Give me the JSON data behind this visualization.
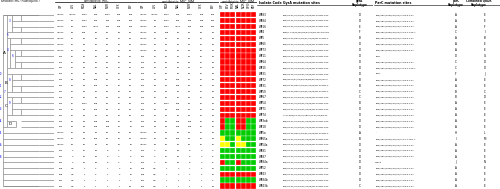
{
  "fig_width": 5.0,
  "fig_height": 1.89,
  "dpi": 100,
  "background_color": "#ffffff",
  "n_rows": 30,
  "color_R": "#ff0000",
  "color_S": "#00cc00",
  "color_I": "#ffff00",
  "tree_color": "#888888",
  "antibs": [
    "CIP",
    "LEV",
    "MOX",
    "NAL",
    "NOR",
    "OFX",
    "PEF"
  ],
  "hm_accurate": [
    [
      1,
      1,
      1,
      1,
      1,
      1,
      1
    ],
    [
      1,
      1,
      1,
      1,
      1,
      1,
      1
    ],
    [
      1,
      1,
      1,
      1,
      1,
      1,
      1
    ],
    [
      1,
      1,
      1,
      1,
      1,
      1,
      1
    ],
    [
      1,
      1,
      1,
      1,
      1,
      1,
      1
    ],
    [
      1,
      1,
      1,
      1,
      1,
      1,
      1
    ],
    [
      1,
      1,
      1,
      1,
      1,
      1,
      1
    ],
    [
      1,
      1,
      1,
      1,
      1,
      1,
      1
    ],
    [
      1,
      1,
      1,
      1,
      1,
      1,
      1
    ],
    [
      1,
      1,
      1,
      1,
      1,
      1,
      1
    ],
    [
      1,
      1,
      1,
      1,
      1,
      1,
      1
    ],
    [
      1,
      1,
      1,
      1,
      1,
      1,
      1
    ],
    [
      1,
      1,
      1,
      1,
      1,
      1,
      1
    ],
    [
      1,
      1,
      1,
      1,
      1,
      1,
      1
    ],
    [
      1,
      1,
      1,
      1,
      1,
      1,
      1
    ],
    [
      1,
      1,
      1,
      1,
      1,
      1,
      1
    ],
    [
      1,
      1,
      1,
      1,
      1,
      1,
      1
    ],
    [
      1,
      1,
      1,
      1,
      1,
      1,
      1
    ],
    [
      1,
      0,
      0,
      1,
      1,
      0,
      0
    ],
    [
      1,
      0,
      0,
      1,
      1,
      0,
      0
    ],
    [
      0,
      0,
      0,
      0,
      0,
      0,
      0
    ],
    [
      2,
      0,
      0,
      2,
      0,
      0,
      0
    ],
    [
      2,
      2,
      0,
      2,
      2,
      0,
      0
    ],
    [
      0,
      0,
      0,
      0,
      0,
      0,
      0
    ],
    [
      0,
      0,
      0,
      0,
      0,
      0,
      0
    ],
    [
      1,
      0,
      0,
      1,
      0,
      0,
      0
    ],
    [
      0,
      0,
      0,
      0,
      0,
      0,
      0
    ],
    [
      1,
      1,
      1,
      1,
      1,
      1,
      1
    ],
    [
      0,
      0,
      0,
      0,
      0,
      0,
      0
    ],
    [
      1,
      1,
      1,
      1,
      1,
      1,
      1
    ]
  ],
  "mic1_data": [
    [
      ">1024",
      ">1024",
      "1024",
      "256",
      "1024",
      "128",
      "256"
    ],
    [
      ">1024",
      "64",
      "1024",
      "256",
      "256",
      "128",
      "256"
    ],
    [
      ">1024",
      "64",
      "1024",
      ">512",
      "256",
      "128",
      "256"
    ],
    [
      ">1024",
      "32",
      "128",
      "64",
      "32",
      "32",
      "64"
    ],
    [
      ">1024",
      "16",
      "64",
      "64",
      "32",
      "16",
      "64"
    ],
    [
      ">1024",
      "16",
      "64",
      "64",
      "32",
      "16",
      "64"
    ],
    [
      ">1024",
      "16",
      "64",
      "64",
      "32",
      "16",
      "64"
    ],
    [
      "192",
      "16",
      "64",
      "64",
      "32",
      "16",
      "64"
    ],
    [
      "192",
      "16",
      "64",
      "64",
      "32",
      "16",
      "64"
    ],
    [
      "192",
      "16",
      "64",
      "64",
      "32",
      "16",
      "64"
    ],
    [
      "192",
      "16",
      "64",
      "64",
      "32",
      "16",
      "64"
    ],
    [
      "192",
      "32",
      "64",
      "128",
      "64",
      "16",
      "64"
    ],
    [
      "192",
      "32",
      "64",
      "128",
      "64",
      "16",
      "64"
    ],
    [
      "192",
      "16",
      "64",
      "64",
      "32",
      "16",
      "64"
    ],
    [
      "192",
      "16",
      "64",
      "64",
      "32",
      "16",
      "64"
    ],
    [
      "192",
      "16",
      "1024",
      "128",
      "32",
      "16",
      "64"
    ],
    [
      "192",
      "16",
      "64",
      "128",
      "32",
      "16",
      "64"
    ],
    [
      "192",
      "16",
      "64",
      "64",
      "32",
      "16",
      "64"
    ],
    [
      "192",
      "32",
      "32",
      "128",
      "128",
      "16",
      "16"
    ],
    [
      "192",
      "32",
      "32",
      "128",
      "128",
      "16",
      "16"
    ],
    [
      ">1024",
      "16",
      "64",
      "32",
      "32",
      "16",
      "64"
    ],
    [
      ">1024",
      "16",
      "64",
      "128",
      "32",
      "16",
      "64"
    ],
    [
      ">1024",
      "32",
      "32",
      "64",
      "64",
      "16",
      "16"
    ],
    [
      "192",
      "4",
      "16",
      "32",
      "8",
      "4",
      "8"
    ],
    [
      "192",
      "4",
      "16",
      "32",
      "8",
      "4",
      "8"
    ],
    [
      "192",
      "4",
      "16",
      "32",
      "8",
      "4",
      "8"
    ],
    [
      "128",
      "0.5",
      "1",
      "2",
      "1",
      "2",
      "12"
    ],
    [
      "128",
      "0.5",
      "1",
      "2",
      "1",
      "2",
      "12"
    ],
    [
      "192",
      "0.5",
      "1",
      "1",
      "1",
      "1",
      "2"
    ],
    [
      "192",
      "0.5",
      "1",
      "1",
      "1",
      "1",
      "32"
    ]
  ],
  "isolate_codes": [
    "WP83",
    "WP84",
    "WP16",
    "WP4",
    "WP5",
    "WP65",
    "WP73",
    "WP11",
    "WP64",
    "WP15",
    "WP31",
    "WP72",
    "WP31",
    "WP59",
    "WP67",
    "WP54",
    "WP71",
    "WP74",
    "WP3ab",
    "WP18",
    "WP5a",
    "WP65a",
    "WP54a",
    "WP81",
    "WP87",
    "WP84a",
    "WP52",
    "WP43",
    "WP84b",
    "WP43b"
  ],
  "gyrA_mutations": [
    "S83I/Y1,S2/Y5/M4/R2/S3/Y5/M1,S2TM1,COS,NFU2Oc,ART-CO2",
    "S83I/Y1,S2/Y5/M4/R2/S3/Y5/M1,S2TM1,COS,NFU2Oc,ART-CO2",
    "S83I/Y1,S2/Y5/M4/R2/S3/Y5/M1,S2TM1,COS,NFU2Oc,ART-CO2",
    "S83F/Y1,S2/Y5/M4/R2/S3/Y5/M1,S2TM1,COS,NFU2Oc,1,2N,S,1,4N,S,1,5A",
    "S83I/Y1,S2/D3Y2/M4/R2/S3/Y5/M1,S2TM1,COS,NFU2Oc,ART-CO2",
    "S83I/Y1,S2/Y5/M4/R2/S3/Y5/M1,S2TM1,COS,NFU2Oc,ART-CO2",
    "S83I/Y1,S2/Y5/M4/R2/S3/Y5/M1,S2TM1,COS,NFU2Oc,ART-CO2",
    "S83I/Y1,S2/Y5/M4/R2/S3/Y5/M1,S2TM1,COS,NFU2Oc,ART-CO2",
    "S83I/Y1,S2/Y5/M4/R2/S3/Y5/M1,S2TM1,COS,NFU2Oc,ART-CO2",
    "S83I/Y1,S2/Y5/M4/R2/S3/Y5/M1,S2TM1,COS,NFU2Oc,ART-CO2",
    "S83I/Y1,S2/Y5/M4/R2/S3/Y5/M1,S2TM1,COS,NFU2Oc,ART-CO2",
    "S83I/D87Y/S1/Y5/D4/Y5/M4/R2/S3/Y5/M1,S2TM,ART-CO2",
    "S83I/Y1,S2/D3Y2/M4/R2/S3/Y5/M1,S2TM1,COS,NFU2Oc,ART-CO2",
    "S83I/Y1,S2/D3Y2/M4/R2/S3/Y5/M1,S2TM1,COS,NFU2Oc,ART-CO2",
    "S83I/Y1,S2/Y5/M4/R2/S3/Y5/M1,S2TM1,COS,NFU2Oc,ART-CO2",
    "S83I/Y1,S2/Y5/M4/R2/S3/Y5/M1,S2TM1,COS,NFU2Oc,ART-CO2",
    "S83I/Y1,S2/Y5/M4/R2/S3/Y5/M1,S2TM1,COS,NFU2Oc,ART-CO2",
    "Y77Y,S83I/Y1,S2/Y5/S83Y/Y1,S2/Y5/M1,S2TM1,COS,NFU2Oc,ART-CO2",
    "S83I/Y1,S2/Y5/M4/R2/S3/Y5/M1,S2TM1,COS,NFU2Oc,ART-CO2",
    "S83I/Y1,S2/Y5/M4/R2/S3/Y5/M1,S2TM1,COS,NFU2Oc,ART-CO2",
    "S83I/Y1,S2/D3Y2/M4/R2/S3/Y5/M1,S2TM1,COS,NFU2Oc,ART-CO2",
    "S83I/Y1,S2/Y5/M4/R2/S3/Y5/M1,S2TM1,COS,NFU2Oc,ART-CO2",
    "S83I/Y1,S2/Y5/M4/R2/S3/Y5/M1,S2TM1,COS,NFU2Oc,ART-CO2",
    "S83I/Y1,S2/Y5/M4/R2/S3/Y5/M1,S2TM1,COS,NFU2Oc,ART-CO2",
    "S83I/Y1,S2/Y5/M4/R2/S3/Y5/M1,S2TM1,COS,NFU2Oc,ART-CO2",
    "S83I/Y1,S2/Y5/M4/R2/S3/Y5/M1,S2TM1,COS,NFU2Oc,ART-CO2",
    "S83I/Y1,S2/Y5/M4/R2/S3/Y5/M1,S2TM1,COS,NFU2Oc,ART-CO2",
    "S83I/Y1,S2/Y5/M4/R2/S3/Y5/M1,S2TM1,COS,NFU2Oc,ART-CO2",
    "S83I/Y1,S2/Y5/M4/R2/S3/Y5/M1,S2TM1,COS,NFU2Oc,ART-CO2",
    "S83I/Y1,S2/Y5/M4/R2/S3/Y5/M1,S2TM1,COS,NFU2Oc,ART-CO2"
  ],
  "gyrA_haplotypes": [
    "D",
    "D",
    "E",
    "F",
    "B",
    "D",
    "D",
    "D",
    "D",
    "D",
    "D",
    "B",
    "B",
    "C",
    "C",
    "B",
    "D",
    "D",
    "D",
    "D",
    "A",
    "B",
    "D",
    "D",
    "D",
    "D",
    "D",
    "D",
    "D",
    "C"
  ],
  "parC_mutations": [
    "S80I/S80I/S83G/G3/S5/A1,5G,S,1,4A",
    "S80I/S80I/S83G/G3/S5/A1,5G,S,1,4A",
    "S80I/S80I/S83G/G3/S5/A1,5G,S,1,4A",
    "S80I/S80I/S83G/G3/S5/A1,5N,1-13G,A,1,1G,S,1,4A",
    "S80I/S80I/S83G/G3/S5/A1,5G,S,1,4A",
    "S80I/S80I/S83G/G3/S5/A1,5G,S,1,4A",
    "S80I/S80I/S83G/G3/S5/A1,5G,S,1,4A",
    "S81L",
    "S80I/S80I/S83G/G3/S5/A1,5G,S,1,4A",
    "S80I/S80I/S83G/G3/S5/A1,5N,1-13G,A,1,1G,S,1,4A",
    "S81L",
    "S80I/S80I/S83G/G3/S5/A1,5G,S,1,4A",
    "S80I/S80I/S83G/G3/S5/A1,5G,S,1,4A",
    "S80I/S80I/S83G/G3/S5/A1,5G,S,1,4A",
    "S80I/S80I/S83G/G3/S5/A1,5G,S,1,4A",
    "S80I/S80I/S83G/G3/S5/A1,5G,S,1,4A",
    "S80I/S80I/S83G/G3/S5/A1,5G,S,1,4A",
    "S80I/S80I/S83G/G3/S5/A1,5G,S,1,4A",
    "S80I/S80I/S83G/G3/S5/A1,5G,S,1,4A",
    "S80I/S80I/S83G/G3/S5/A1,5G,S,1,4A",
    "-",
    "S80I/S80I/S83G/G3/S5/A1,5Y,1-12G,A,1,1G,S,1,4A",
    "S80I/S80I/S83G/G3/S5/A1,5G,S,1,4A",
    "S80I/S80I/S83G/G3/S5/A1,5G,S,1,4A",
    "S80I/S80I/S83G/G3/S5/A1,5G,S,1,4A",
    "V130E",
    "S80I/S80I/S83G/G3/S5/A1,5G,S,1,4A",
    "S80I/S80I/S83G/G3/S5/A1,5G,S,1,4A",
    "S80I/S80I/S83G/G3/S5/A1,5G,S,1,4A",
    "S80I/S80I/S83G/G3/S5/A1,5G,S,1,4A"
  ],
  "parC_haplotypes": [
    "A",
    "A",
    "A",
    "C",
    "A",
    "A",
    "A",
    "D",
    "C",
    "C",
    "F",
    "A",
    "A",
    "B",
    "B",
    "A",
    "A",
    "A",
    "A",
    "A",
    "H",
    "I",
    "A",
    "A",
    "A",
    "J",
    "A",
    "A",
    "A",
    "A"
  ],
  "combined_haplotypes": [
    "E",
    "E",
    "F",
    "I",
    "B",
    "E",
    "E",
    "G",
    "D",
    "D",
    "J",
    "E",
    "E",
    "C",
    "D",
    "E",
    "E",
    "E",
    "E",
    "E",
    "L",
    "M",
    "E",
    "E",
    "E",
    "N",
    "E",
    "E",
    "E",
    "E"
  ],
  "unique_counts": [
    null,
    null,
    null,
    null,
    null,
    null,
    null,
    null,
    null,
    null,
    null,
    null,
    null,
    null,
    null,
    null,
    null,
    null,
    null,
    null,
    null,
    null,
    null,
    null,
    null,
    null,
    null,
    null,
    null,
    null
  ]
}
